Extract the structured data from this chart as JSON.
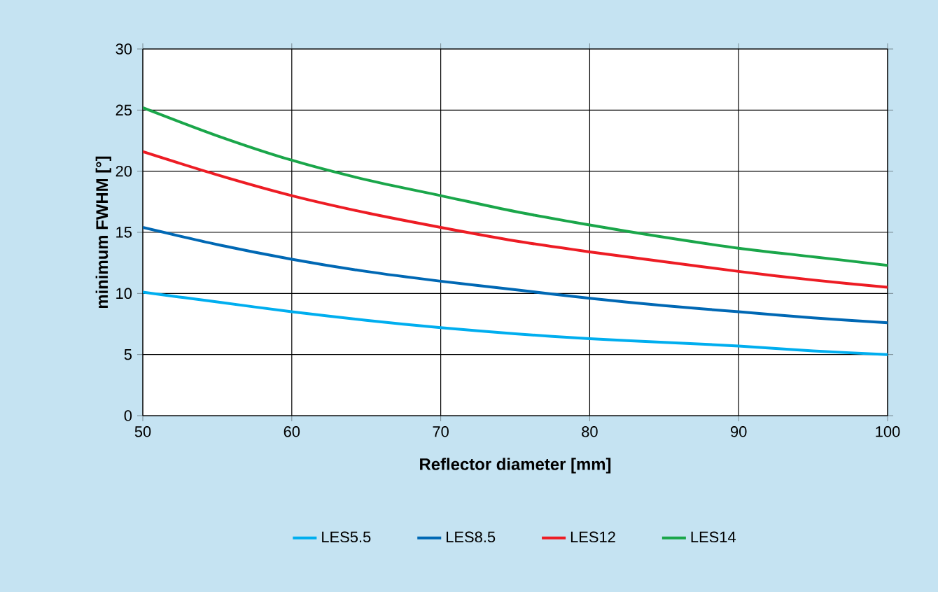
{
  "chart_data": {
    "type": "line",
    "xlabel": "Reflector diameter [mm]",
    "ylabel": "minimum FWHM [°]",
    "x": [
      50,
      55,
      60,
      65,
      70,
      75,
      80,
      85,
      90,
      95,
      100
    ],
    "series": [
      {
        "name": "LES5.5",
        "color": "#00aeef",
        "values": [
          10.1,
          9.3,
          8.5,
          7.8,
          7.2,
          6.7,
          6.3,
          6.0,
          5.7,
          5.3,
          5.0
        ]
      },
      {
        "name": "LES8.5",
        "color": "#0068b4",
        "values": [
          15.4,
          14.0,
          12.8,
          11.8,
          11.0,
          10.3,
          9.6,
          9.0,
          8.5,
          8.0,
          7.6
        ]
      },
      {
        "name": "LES12",
        "color": "#ed1c24",
        "values": [
          21.6,
          19.7,
          18.0,
          16.6,
          15.4,
          14.3,
          13.4,
          12.6,
          11.8,
          11.1,
          10.5
        ]
      },
      {
        "name": "LES14",
        "color": "#1aa64a",
        "values": [
          25.2,
          22.9,
          20.9,
          19.3,
          18.0,
          16.7,
          15.6,
          14.6,
          13.7,
          13.0,
          12.3
        ]
      }
    ],
    "xlim": [
      50,
      100
    ],
    "xticks": [
      50,
      60,
      70,
      80,
      90,
      100
    ],
    "ylim": [
      0,
      30
    ],
    "yticks": [
      0,
      5,
      10,
      15,
      20,
      25,
      30
    ],
    "grid": true,
    "legend": "bottom",
    "marker": "none",
    "line_style": "solid"
  }
}
